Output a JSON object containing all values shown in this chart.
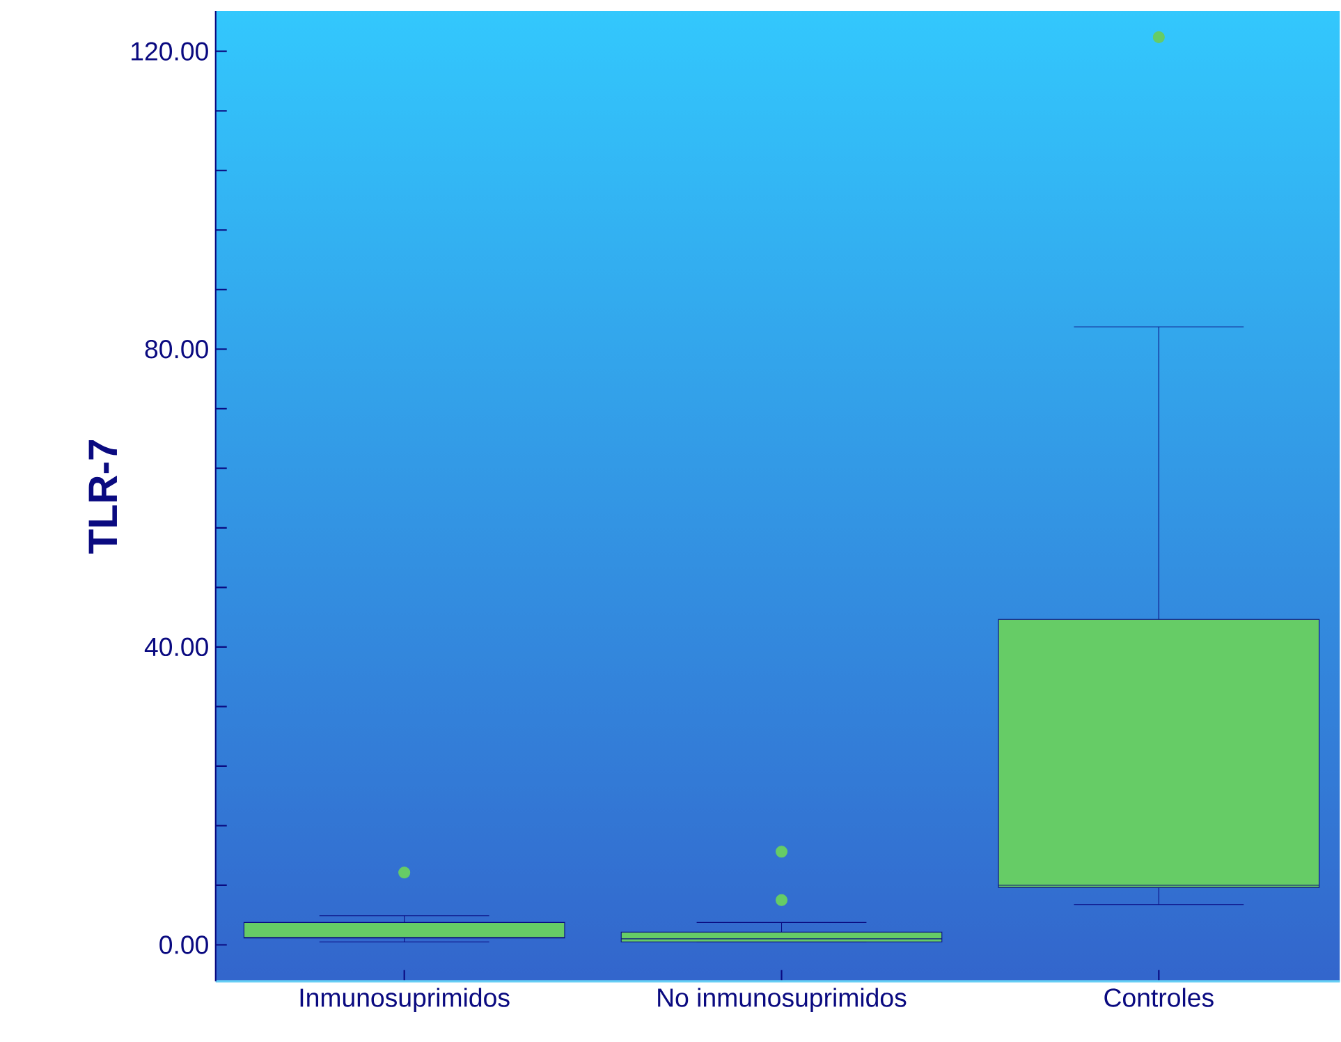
{
  "chart_data": {
    "type": "box",
    "ylabel": "TLR-7",
    "categories": [
      "Inmunosuprimidos",
      "No inmunosuprimidos",
      "Controles"
    ],
    "color": "#66cc66",
    "boxes": [
      {
        "low": 0.4,
        "q1": 0.9,
        "median": 1.0,
        "q3": 3.0,
        "high": 3.9,
        "outliers": [
          9.7
        ]
      },
      {
        "low": 0.4,
        "q1": 0.4,
        "median": 0.8,
        "q3": 1.7,
        "high": 3.0,
        "outliers": [
          6.0,
          12.5
        ]
      },
      {
        "low": 5.4,
        "q1": 7.7,
        "median": 8.0,
        "q3": 43.7,
        "high": 83.0,
        "outliers": [
          121.9
        ]
      }
    ],
    "ylim": [
      -4.9,
      125.4
    ],
    "yticks": [
      {
        "value": 0,
        "label": "0.00"
      },
      {
        "value": 8,
        "label": null
      },
      {
        "value": 16,
        "label": null
      },
      {
        "value": 24,
        "label": null
      },
      {
        "value": 32,
        "label": null
      },
      {
        "value": 40,
        "label": "40.00"
      },
      {
        "value": 48,
        "label": null
      },
      {
        "value": 56,
        "label": null
      },
      {
        "value": 64,
        "label": null
      },
      {
        "value": 72,
        "label": null
      },
      {
        "value": 80,
        "label": "80.00"
      },
      {
        "value": 88,
        "label": null
      },
      {
        "value": 96,
        "label": null
      },
      {
        "value": 104,
        "label": null
      },
      {
        "value": 112,
        "label": null
      },
      {
        "value": 120,
        "label": "120.00"
      }
    ]
  }
}
